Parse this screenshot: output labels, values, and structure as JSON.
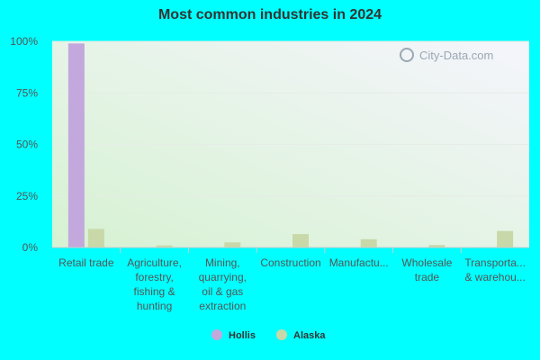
{
  "chart_data": {
    "type": "bar",
    "title": "Most common industries in 2024",
    "categories": [
      [
        "Retail trade"
      ],
      [
        "Agriculture,",
        "forestry,",
        "fishing &",
        "hunting"
      ],
      [
        "Mining,",
        "quarrying,",
        "oil & gas",
        "extraction"
      ],
      [
        "Construction"
      ],
      [
        "Manufactu..."
      ],
      [
        "Wholesale",
        "trade"
      ],
      [
        "Transporta...",
        "& warehou..."
      ]
    ],
    "series": [
      {
        "name": "Hollis",
        "color": "#c3a8dd",
        "values": [
          99,
          0,
          0,
          0,
          0,
          0,
          0
        ]
      },
      {
        "name": "Alaska",
        "color": "#c8d8a8",
        "values": [
          9,
          1,
          2.5,
          6.5,
          4,
          1.2,
          8
        ]
      }
    ],
    "ylim": [
      0,
      100
    ],
    "yticks": [
      0,
      25,
      50,
      75,
      100
    ],
    "ytick_labels": [
      "0%",
      "25%",
      "50%",
      "75%",
      "100%"
    ],
    "legend": "bottom",
    "grid": true
  },
  "watermark": "City-Data.com"
}
